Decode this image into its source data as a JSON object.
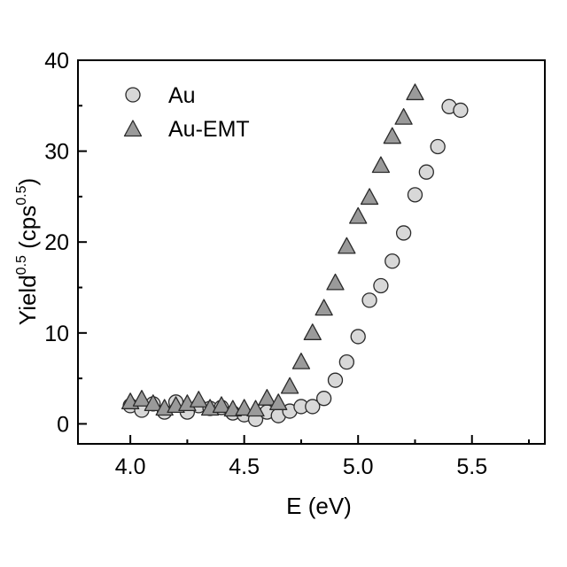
{
  "colors": {
    "axis": "#000000",
    "circle_fill": "#d8d8d8",
    "triangle_fill": "#9a9a9a",
    "marker_stroke": "#2a2a2a"
  },
  "chart_data": {
    "type": "scatter",
    "xlabel": "E (eV)",
    "ylabel": {
      "base": "Yield",
      "sup": "0.5",
      "unit_open": " (cps",
      "unit_sup": "0.5",
      "unit_close": ")"
    },
    "xlim": [
      3.77,
      5.82
    ],
    "ylim": [
      -2.2,
      40
    ],
    "xticks": [
      4.0,
      4.5,
      5.0,
      5.5
    ],
    "xtick_labels": [
      "4.0",
      "4.5",
      "5.0",
      "5.5"
    ],
    "yticks": [
      0,
      10,
      20,
      30,
      40
    ],
    "ytick_labels": [
      "0",
      "10",
      "20",
      "30",
      "40"
    ],
    "grid": false,
    "legend_position": "top-left",
    "series": [
      {
        "name": "Au",
        "marker": "circle",
        "x": [
          4.0,
          4.05,
          4.1,
          4.15,
          4.2,
          4.25,
          4.3,
          4.35,
          4.4,
          4.45,
          4.5,
          4.55,
          4.6,
          4.65,
          4.7,
          4.75,
          4.8,
          4.85,
          4.9,
          4.95,
          5.0,
          5.05,
          5.1,
          5.15,
          5.2,
          5.25,
          5.3,
          5.35,
          5.4,
          5.45
        ],
        "y": [
          2.0,
          1.5,
          2.2,
          1.3,
          2.4,
          1.3,
          2.0,
          1.7,
          1.8,
          1.2,
          1.0,
          0.5,
          1.3,
          0.9,
          1.4,
          1.9,
          1.9,
          2.8,
          4.8,
          6.8,
          9.6,
          13.6,
          15.2,
          17.9,
          21.0,
          25.2,
          27.7,
          30.5,
          34.9,
          34.5
        ]
      },
      {
        "name": "Au-EMT",
        "marker": "triangle",
        "x": [
          4.0,
          4.05,
          4.1,
          4.15,
          4.2,
          4.25,
          4.3,
          4.35,
          4.4,
          4.45,
          4.5,
          4.55,
          4.6,
          4.65,
          4.7,
          4.75,
          4.8,
          4.85,
          4.9,
          4.95,
          5.0,
          5.05,
          5.1,
          5.15,
          5.2,
          5.25
        ],
        "y": [
          2.4,
          2.7,
          2.2,
          1.7,
          2.0,
          2.2,
          2.6,
          1.7,
          2.0,
          1.6,
          1.7,
          1.6,
          2.8,
          2.3,
          4.1,
          6.8,
          10.0,
          12.7,
          15.5,
          19.5,
          22.8,
          24.9,
          28.4,
          31.6,
          33.7,
          36.4
        ]
      }
    ]
  }
}
